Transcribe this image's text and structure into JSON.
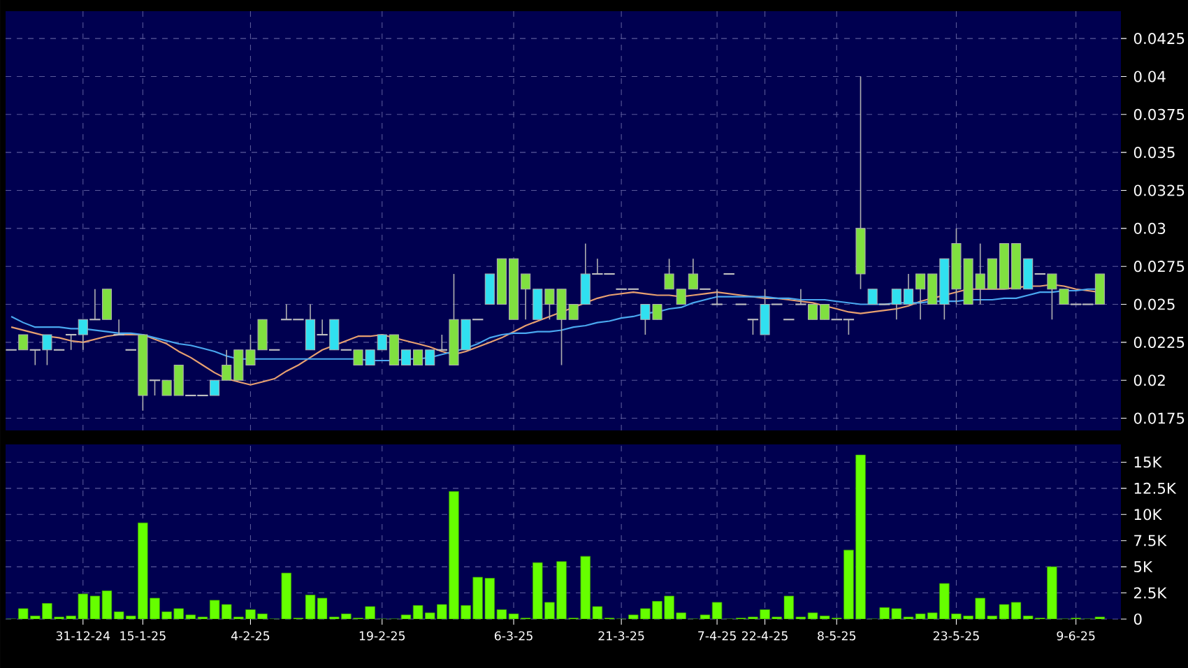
{
  "chart_data": [
    {
      "type": "candlestick",
      "categories": [
        null,
        null,
        null,
        null,
        null,
        null,
        null,
        null,
        null,
        null,
        null,
        null,
        null,
        null,
        null,
        null,
        null,
        null,
        null,
        null,
        null,
        null,
        null,
        null,
        null,
        null,
        null,
        null,
        null,
        null,
        null,
        null,
        null,
        null,
        null,
        null,
        null,
        null,
        null,
        null,
        null,
        null,
        null,
        null,
        null,
        null,
        null,
        null,
        null,
        null,
        null,
        null,
        null,
        null,
        null,
        null,
        null,
        null,
        null,
        null,
        null,
        null,
        null,
        null,
        null,
        null,
        null,
        null,
        null,
        null,
        null,
        null,
        null,
        null,
        null,
        null,
        null,
        null,
        null,
        null,
        null,
        null,
        null,
        null,
        null,
        null,
        null,
        null,
        null,
        null,
        null,
        null
      ],
      "ohlc": [
        [
          0.022,
          0.022,
          0.022,
          0.022
        ],
        [
          0.023,
          0.023,
          0.022,
          0.022
        ],
        [
          0.022,
          0.022,
          0.021,
          0.022
        ],
        [
          0.022,
          0.023,
          0.021,
          0.023
        ],
        [
          0.022,
          0.022,
          0.022,
          0.022
        ],
        [
          0.023,
          0.023,
          0.022,
          0.023
        ],
        [
          0.023,
          0.024,
          0.022,
          0.024
        ],
        [
          0.024,
          0.026,
          0.024,
          0.024
        ],
        [
          0.026,
          0.026,
          0.024,
          0.024
        ],
        [
          0.023,
          0.024,
          0.023,
          0.023
        ],
        [
          0.022,
          0.022,
          0.022,
          0.022
        ],
        [
          0.023,
          0.023,
          0.018,
          0.019
        ],
        [
          0.02,
          0.02,
          0.019,
          0.02
        ],
        [
          0.02,
          0.02,
          0.019,
          0.019
        ],
        [
          0.021,
          0.021,
          0.019,
          0.019
        ],
        [
          0.019,
          0.019,
          0.019,
          0.019
        ],
        [
          0.019,
          0.019,
          0.019,
          0.019
        ],
        [
          0.019,
          0.02,
          0.019,
          0.02
        ],
        [
          0.021,
          0.022,
          0.02,
          0.02
        ],
        [
          0.022,
          0.022,
          0.02,
          0.02
        ],
        [
          0.022,
          0.023,
          0.021,
          0.021
        ],
        [
          0.024,
          0.024,
          0.022,
          0.022
        ],
        [
          0.022,
          0.022,
          0.022,
          0.022
        ],
        [
          0.024,
          0.025,
          0.024,
          0.024
        ],
        [
          0.024,
          0.024,
          0.024,
          0.024
        ],
        [
          0.022,
          0.025,
          0.022,
          0.024
        ],
        [
          0.023,
          0.024,
          0.023,
          0.023
        ],
        [
          0.022,
          0.024,
          0.022,
          0.024
        ],
        [
          0.022,
          0.022,
          0.022,
          0.022
        ],
        [
          0.022,
          0.022,
          0.021,
          0.021
        ],
        [
          0.021,
          0.022,
          0.021,
          0.022
        ],
        [
          0.022,
          0.023,
          0.022,
          0.023
        ],
        [
          0.023,
          0.023,
          0.021,
          0.021
        ],
        [
          0.021,
          0.022,
          0.021,
          0.022
        ],
        [
          0.022,
          0.022,
          0.021,
          0.021
        ],
        [
          0.021,
          0.022,
          0.021,
          0.022
        ],
        [
          0.022,
          0.023,
          0.022,
          0.022
        ],
        [
          0.024,
          0.027,
          0.021,
          0.021
        ],
        [
          0.022,
          0.024,
          0.022,
          0.024
        ],
        [
          0.024,
          0.024,
          0.024,
          0.024
        ],
        [
          0.025,
          0.027,
          0.025,
          0.027
        ],
        [
          0.028,
          0.028,
          0.025,
          0.025
        ],
        [
          0.028,
          0.028,
          0.024,
          0.024
        ],
        [
          0.027,
          0.027,
          0.024,
          0.026
        ],
        [
          0.024,
          0.026,
          0.024,
          0.026
        ],
        [
          0.026,
          0.026,
          0.024,
          0.025
        ],
        [
          0.026,
          0.026,
          0.021,
          0.024
        ],
        [
          0.025,
          0.025,
          0.024,
          0.024
        ],
        [
          0.025,
          0.029,
          0.025,
          0.027
        ],
        [
          0.027,
          0.028,
          0.027,
          0.027
        ],
        [
          0.027,
          0.027,
          0.027,
          0.027
        ],
        [
          0.026,
          0.026,
          0.026,
          0.026
        ],
        [
          0.026,
          0.026,
          0.026,
          0.026
        ],
        [
          0.024,
          0.025,
          0.023,
          0.025
        ],
        [
          0.025,
          0.025,
          0.024,
          0.024
        ],
        [
          0.027,
          0.028,
          0.026,
          0.026
        ],
        [
          0.026,
          0.026,
          0.025,
          0.025
        ],
        [
          0.027,
          0.028,
          0.026,
          0.026
        ],
        [
          0.026,
          0.026,
          0.026,
          0.026
        ],
        [
          0.025,
          0.026,
          0.025,
          0.025
        ],
        [
          0.027,
          0.027,
          0.027,
          0.027
        ],
        [
          0.025,
          0.025,
          0.025,
          0.025
        ],
        [
          0.024,
          0.024,
          0.023,
          0.024
        ],
        [
          0.023,
          0.026,
          0.023,
          0.025
        ],
        [
          0.025,
          0.025,
          0.025,
          0.025
        ],
        [
          0.024,
          0.024,
          0.024,
          0.024
        ],
        [
          0.025,
          0.026,
          0.025,
          0.025
        ],
        [
          0.025,
          0.025,
          0.024,
          0.024
        ],
        [
          0.025,
          0.025,
          0.024,
          0.024
        ],
        [
          0.024,
          0.024,
          0.024,
          0.024
        ],
        [
          0.024,
          0.024,
          0.023,
          0.024
        ],
        [
          0.03,
          0.04,
          0.026,
          0.027
        ],
        [
          0.025,
          0.026,
          0.025,
          0.026
        ],
        [
          0.025,
          0.025,
          0.025,
          0.025
        ],
        [
          0.025,
          0.026,
          0.024,
          0.026
        ],
        [
          0.025,
          0.027,
          0.025,
          0.026
        ],
        [
          0.027,
          0.027,
          0.024,
          0.026
        ],
        [
          0.027,
          0.027,
          0.025,
          0.025
        ],
        [
          0.025,
          0.028,
          0.024,
          0.028
        ],
        [
          0.029,
          0.03,
          0.025,
          0.026
        ],
        [
          0.028,
          0.028,
          0.025,
          0.025
        ],
        [
          0.027,
          0.029,
          0.025,
          0.026
        ],
        [
          0.028,
          0.028,
          0.026,
          0.026
        ],
        [
          0.029,
          0.029,
          0.026,
          0.026
        ],
        [
          0.029,
          0.029,
          0.026,
          0.026
        ],
        [
          0.026,
          0.028,
          0.026,
          0.028
        ],
        [
          0.027,
          0.027,
          0.027,
          0.027
        ],
        [
          0.027,
          0.027,
          0.024,
          0.026
        ],
        [
          0.026,
          0.026,
          0.025,
          0.025
        ],
        [
          0.025,
          0.025,
          0.025,
          0.025
        ],
        [
          0.025,
          0.025,
          0.025,
          0.025
        ],
        [
          0.027,
          0.027,
          0.025,
          0.025
        ]
      ],
      "colors": [
        "#c0c0c0",
        "#80e040",
        "#c0c0c0",
        "#30e0f0",
        "#c0c0c0",
        "#c0c0c0",
        "#30e0f0",
        "#c0c0c0",
        "#80e040",
        "#c0c0c0",
        "#c0c0c0",
        "#80e040",
        "#c0c0c0",
        "#80e040",
        "#80e040",
        "#c0c0c0",
        "#c0c0c0",
        "#30e0f0",
        "#80e040",
        "#80e040",
        "#80e040",
        "#80e040",
        "#c0c0c0",
        "#c0c0c0",
        "#c0c0c0",
        "#30e0f0",
        "#c0c0c0",
        "#30e0f0",
        "#c0c0c0",
        "#80e040",
        "#30e0f0",
        "#30e0f0",
        "#80e040",
        "#30e0f0",
        "#80e040",
        "#30e0f0",
        "#c0c0c0",
        "#80e040",
        "#30e0f0",
        "#c0c0c0",
        "#30e0f0",
        "#80e040",
        "#80e040",
        "#80e040",
        "#30e0f0",
        "#80e040",
        "#80e040",
        "#80e040",
        "#30e0f0",
        "#c0c0c0",
        "#c0c0c0",
        "#c0c0c0",
        "#c0c0c0",
        "#30e0f0",
        "#80e040",
        "#80e040",
        "#80e040",
        "#80e040",
        "#c0c0c0",
        "#c0c0c0",
        "#c0c0c0",
        "#c0c0c0",
        "#c0c0c0",
        "#30e0f0",
        "#c0c0c0",
        "#c0c0c0",
        "#c0c0c0",
        "#80e040",
        "#80e040",
        "#c0c0c0",
        "#c0c0c0",
        "#80e040",
        "#30e0f0",
        "#c0c0c0",
        "#30e0f0",
        "#30e0f0",
        "#80e040",
        "#80e040",
        "#30e0f0",
        "#80e040",
        "#80e040",
        "#80e040",
        "#80e040",
        "#80e040",
        "#80e040",
        "#30e0f0",
        "#c0c0c0",
        "#80e040",
        "#80e040",
        "#c0c0c0",
        "#c0c0c0",
        "#80e040"
      ],
      "series": [
        {
          "type": "line",
          "color": "#e8a070",
          "values": [
            0.0235,
            0.0233,
            0.0231,
            0.0229,
            0.0228,
            0.0226,
            0.0225,
            0.0227,
            0.0229,
            0.023,
            0.023,
            0.023,
            0.0227,
            0.0224,
            0.0219,
            0.0215,
            0.021,
            0.0205,
            0.0201,
            0.0199,
            0.0197,
            0.0199,
            0.0201,
            0.0206,
            0.021,
            0.0215,
            0.022,
            0.0223,
            0.0226,
            0.0229,
            0.0229,
            0.023,
            0.0228,
            0.0226,
            0.0224,
            0.0222,
            0.0219,
            0.0217,
            0.0219,
            0.0222,
            0.0225,
            0.0228,
            0.0232,
            0.0236,
            0.0239,
            0.0242,
            0.0245,
            0.0248,
            0.0251,
            0.0254,
            0.0256,
            0.0257,
            0.0258,
            0.0257,
            0.0256,
            0.0256,
            0.0255,
            0.0256,
            0.0257,
            0.0258,
            0.0257,
            0.0256,
            0.0255,
            0.0254,
            0.0254,
            0.0253,
            0.0252,
            0.0251,
            0.0249,
            0.0247,
            0.0245,
            0.0244,
            0.0245,
            0.0246,
            0.0247,
            0.0249,
            0.0252,
            0.0254,
            0.0256,
            0.0258,
            0.026,
            0.026,
            0.026,
            0.026,
            0.0261,
            0.0262,
            0.0262,
            0.0263,
            0.0262,
            0.026,
            0.0259,
            0.0258
          ]
        },
        {
          "type": "line",
          "color": "#4aa8f0",
          "values": [
            0.0242,
            0.0238,
            0.0235,
            0.0235,
            0.0235,
            0.0234,
            0.0234,
            0.0233,
            0.0232,
            0.0231,
            0.0231,
            0.023,
            0.0228,
            0.0226,
            0.0224,
            0.0223,
            0.0221,
            0.0219,
            0.0216,
            0.0214,
            0.0214,
            0.0214,
            0.0214,
            0.0214,
            0.0214,
            0.0214,
            0.0214,
            0.0214,
            0.0214,
            0.0214,
            0.0213,
            0.0213,
            0.0213,
            0.0214,
            0.0214,
            0.0215,
            0.0217,
            0.0219,
            0.0221,
            0.0224,
            0.0228,
            0.023,
            0.0231,
            0.0231,
            0.0232,
            0.0232,
            0.0233,
            0.0235,
            0.0236,
            0.0238,
            0.0239,
            0.0241,
            0.0242,
            0.0244,
            0.0245,
            0.0247,
            0.0248,
            0.0251,
            0.0253,
            0.0255,
            0.0255,
            0.0255,
            0.0255,
            0.0255,
            0.0254,
            0.0254,
            0.0253,
            0.0253,
            0.0253,
            0.0252,
            0.0251,
            0.025,
            0.025,
            0.025,
            0.0251,
            0.0251,
            0.0251,
            0.0252,
            0.0252,
            0.0252,
            0.0253,
            0.0253,
            0.0253,
            0.0254,
            0.0254,
            0.0256,
            0.0258,
            0.0258,
            0.0259,
            0.0259,
            0.026,
            0.026
          ]
        }
      ],
      "ylim": [
        0.0167,
        0.0443
      ],
      "yticks": [
        0.0175,
        0.02,
        0.0225,
        0.025,
        0.0275,
        0.03,
        0.0325,
        0.035,
        0.0375,
        0.04,
        0.0425
      ],
      "grid": true,
      "tick_labels": "y"
    },
    {
      "type": "bar",
      "categories": [
        null,
        null,
        null,
        null,
        null,
        null,
        "31-12-24",
        null,
        null,
        null,
        null,
        "15-1-25",
        null,
        null,
        null,
        null,
        null,
        null,
        null,
        null,
        "4-2-25",
        null,
        null,
        null,
        null,
        null,
        null,
        null,
        null,
        null,
        null,
        "19-2-25",
        null,
        null,
        null,
        null,
        null,
        null,
        null,
        null,
        null,
        null,
        "6-3-25",
        null,
        null,
        null,
        null,
        null,
        null,
        null,
        null,
        "21-3-25",
        null,
        null,
        null,
        null,
        null,
        null,
        null,
        "7-4-25",
        null,
        null,
        null,
        "22-4-25",
        null,
        null,
        null,
        null,
        null,
        "8-5-25",
        null,
        null,
        null,
        null,
        null,
        null,
        null,
        null,
        null,
        "23-5-25",
        null,
        null,
        null,
        null,
        null,
        null,
        null,
        null,
        null,
        "9-6-25",
        null,
        null
      ],
      "values": [
        0,
        1000,
        300,
        1500,
        200,
        300,
        2400,
        2200,
        2700,
        700,
        300,
        9200,
        2000,
        700,
        1000,
        400,
        200,
        1800,
        1400,
        200,
        900,
        500,
        0,
        4400,
        100,
        2300,
        2000,
        200,
        500,
        100,
        1200,
        0,
        0,
        400,
        1300,
        600,
        1400,
        12200,
        1300,
        4000,
        3900,
        900,
        500,
        100,
        5400,
        1600,
        5500,
        100,
        6000,
        1200,
        100,
        0,
        400,
        1000,
        1700,
        2200,
        600,
        0,
        400,
        1600,
        0,
        100,
        200,
        900,
        200,
        2200,
        200,
        600,
        300,
        100,
        6600,
        15700,
        0,
        1100,
        1000,
        200,
        500,
        600,
        3400,
        500,
        300,
        2000,
        300,
        1400,
        1600,
        300,
        100,
        5000,
        0,
        100,
        0,
        200
      ],
      "color": "#66ff00",
      "ylim": [
        0,
        16700
      ],
      "yticks": [
        {
          "value": 0,
          "label": "0"
        },
        {
          "value": 2500,
          "label": "2.5K"
        },
        {
          "value": 5000,
          "label": "5K"
        },
        {
          "value": 7500,
          "label": "7.5K"
        },
        {
          "value": 10000,
          "label": "10K"
        },
        {
          "value": 12500,
          "label": "12.5K"
        },
        {
          "value": 15000,
          "label": "15K"
        }
      ],
      "grid": true
    }
  ]
}
